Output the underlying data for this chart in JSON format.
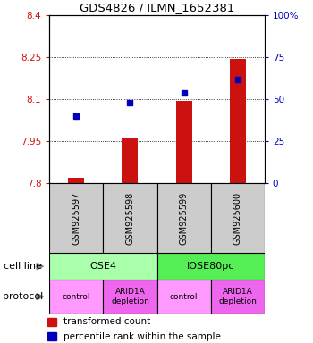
{
  "title": "GDS4826 / ILMN_1652381",
  "samples": [
    "GSM925597",
    "GSM925598",
    "GSM925599",
    "GSM925600"
  ],
  "transformed_counts": [
    7.821,
    7.963,
    8.095,
    8.245
  ],
  "percentile_ranks": [
    40,
    48,
    54,
    62
  ],
  "ylim_left": [
    7.8,
    8.4
  ],
  "ylim_right": [
    0,
    100
  ],
  "yticks_left": [
    7.8,
    7.95,
    8.1,
    8.25,
    8.4
  ],
  "yticks_right": [
    0,
    25,
    50,
    75,
    100
  ],
  "ytick_labels_left": [
    "7.8",
    "7.95",
    "8.1",
    "8.25",
    "8.4"
  ],
  "ytick_labels_right": [
    "0",
    "25",
    "50",
    "75",
    "100%"
  ],
  "cell_lines": [
    [
      "OSE4",
      0,
      2
    ],
    [
      "IOSE80pc",
      2,
      4
    ]
  ],
  "protocols": [
    [
      "control",
      0,
      1
    ],
    [
      "ARID1A\ndepletion",
      1,
      2
    ],
    [
      "control",
      2,
      3
    ],
    [
      "ARID1A\ndepletion",
      3,
      4
    ]
  ],
  "cell_line_colors": [
    "#aaffaa",
    "#55ee55"
  ],
  "protocol_colors": [
    "#ff99ff",
    "#ee66ee",
    "#ff99ff",
    "#ee66ee"
  ],
  "bar_color": "#cc1111",
  "dot_color": "#0000bb",
  "sample_bg_color": "#cccccc",
  "legend_bar_label": "transformed count",
  "legend_dot_label": "percentile rank within the sample",
  "cell_line_label": "cell line",
  "protocol_label": "protocol",
  "bar_width": 0.3
}
